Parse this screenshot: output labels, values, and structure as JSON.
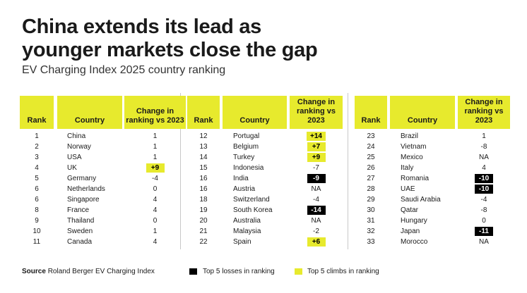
{
  "title_line1": "China extends its lead as",
  "title_line2": "younger markets close the gap",
  "subtitle": "EV Charging Index 2025 country ranking",
  "headers": {
    "rank": "Rank",
    "country": "Country",
    "change": "Change in ranking vs 2023"
  },
  "colors": {
    "climb": "#e7ea2d",
    "loss": "#000000"
  },
  "chart_data": {
    "type": "table",
    "title": "China extends its lead as younger markets close the gap",
    "subtitle": "EV Charging Index 2025 country ranking",
    "columns": [
      "Rank",
      "Country",
      "Change in ranking vs 2023"
    ],
    "tables": [
      {
        "rows": [
          {
            "rank": "1",
            "country": "China",
            "change": "1",
            "hl": ""
          },
          {
            "rank": "2",
            "country": "Norway",
            "change": "1",
            "hl": ""
          },
          {
            "rank": "3",
            "country": "USA",
            "change": "1",
            "hl": ""
          },
          {
            "rank": "4",
            "country": "UK",
            "change": "+9",
            "hl": "climb"
          },
          {
            "rank": "5",
            "country": "Germany",
            "change": "-4",
            "hl": ""
          },
          {
            "rank": "6",
            "country": "Netherlands",
            "change": "0",
            "hl": ""
          },
          {
            "rank": "6",
            "country": "Singapore",
            "change": "4",
            "hl": ""
          },
          {
            "rank": "8",
            "country": "France",
            "change": "4",
            "hl": ""
          },
          {
            "rank": "9",
            "country": "Thailand",
            "change": "0",
            "hl": ""
          },
          {
            "rank": "10",
            "country": "Sweden",
            "change": "1",
            "hl": ""
          },
          {
            "rank": "11",
            "country": "Canada",
            "change": "4",
            "hl": ""
          }
        ]
      },
      {
        "rows": [
          {
            "rank": "12",
            "country": "Portugal",
            "change": "+14",
            "hl": "climb"
          },
          {
            "rank": "13",
            "country": "Belgium",
            "change": "+7",
            "hl": "climb"
          },
          {
            "rank": "14",
            "country": "Turkey",
            "change": "+9",
            "hl": "climb"
          },
          {
            "rank": "15",
            "country": "Indonesia",
            "change": "-7",
            "hl": ""
          },
          {
            "rank": "16",
            "country": "India",
            "change": "-9",
            "hl": "loss"
          },
          {
            "rank": "16",
            "country": "Austria",
            "change": "NA",
            "hl": ""
          },
          {
            "rank": "18",
            "country": "Switzerland",
            "change": "-4",
            "hl": ""
          },
          {
            "rank": "19",
            "country": "South Korea",
            "change": "-14",
            "hl": "loss"
          },
          {
            "rank": "20",
            "country": "Australia",
            "change": "NA",
            "hl": ""
          },
          {
            "rank": "21",
            "country": "Malaysia",
            "change": "-2",
            "hl": ""
          },
          {
            "rank": "22",
            "country": "Spain",
            "change": "+6",
            "hl": "climb"
          }
        ]
      },
      {
        "rows": [
          {
            "rank": "23",
            "country": "Brazil",
            "change": "1",
            "hl": ""
          },
          {
            "rank": "24",
            "country": "Vietnam",
            "change": "-8",
            "hl": ""
          },
          {
            "rank": "25",
            "country": "Mexico",
            "change": "NA",
            "hl": ""
          },
          {
            "rank": "26",
            "country": "Italy",
            "change": "4",
            "hl": ""
          },
          {
            "rank": "27",
            "country": "Romania",
            "change": "-10",
            "hl": "loss"
          },
          {
            "rank": "28",
            "country": "UAE",
            "change": "-10",
            "hl": "loss"
          },
          {
            "rank": "29",
            "country": "Saudi Arabia",
            "change": "-4",
            "hl": ""
          },
          {
            "rank": "30",
            "country": "Qatar",
            "change": "-8",
            "hl": ""
          },
          {
            "rank": "31",
            "country": "Hungary",
            "change": "0",
            "hl": ""
          },
          {
            "rank": "32",
            "country": "Japan",
            "change": "-11",
            "hl": "loss"
          },
          {
            "rank": "33",
            "country": "Morocco",
            "change": "NA",
            "hl": ""
          }
        ]
      }
    ]
  },
  "footer": {
    "source_label": "Source",
    "source_text": "Roland Berger EV Charging Index",
    "legend_losses": "Top 5 losses in ranking",
    "legend_climbs": "Top 5 climbs in ranking"
  }
}
